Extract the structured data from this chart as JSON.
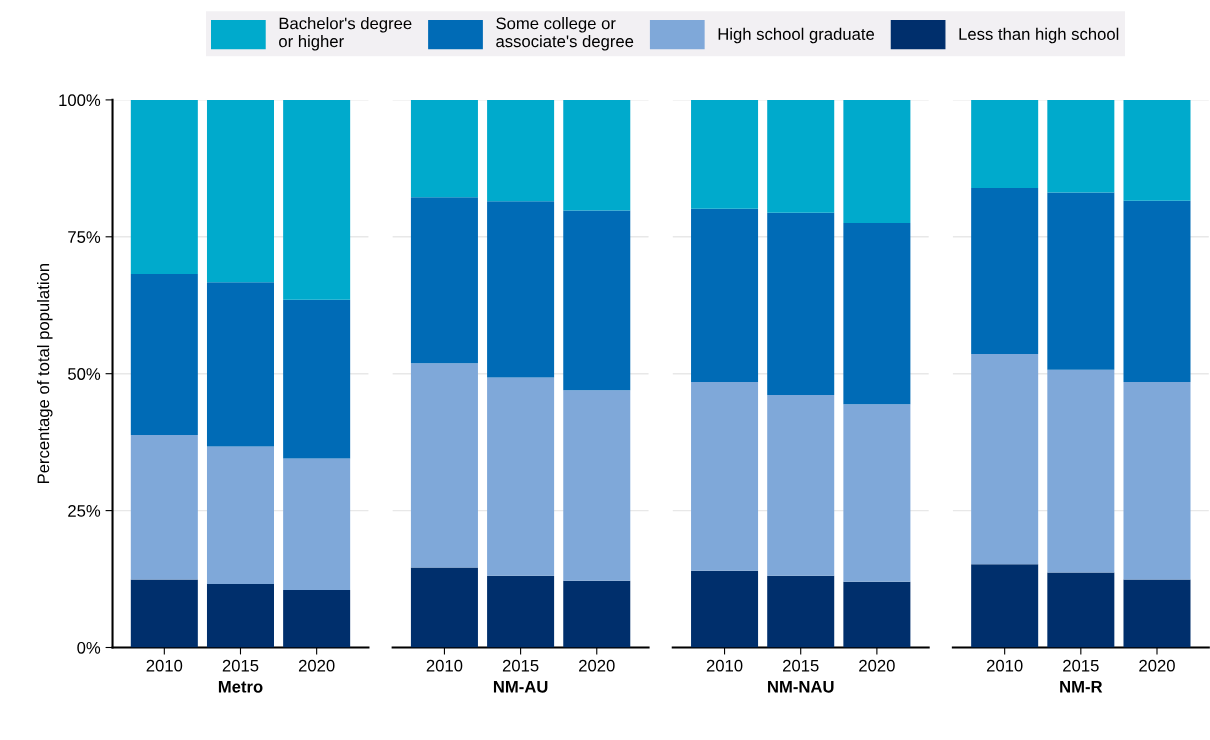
{
  "chart_data": [
    {
      "type": "bar",
      "stacked": true,
      "categories": [
        "2010",
        "2015",
        "2020"
      ],
      "xlabel": "Metro",
      "ylabel": "Percentage of total population",
      "ylim": [
        0,
        100
      ],
      "yticks": [
        {
          "value": 0,
          "label": "0%"
        },
        {
          "value": 25,
          "label": "25%"
        },
        {
          "value": 50,
          "label": "50%"
        },
        {
          "value": 75,
          "label": "75%"
        },
        {
          "value": 100,
          "label": "100%"
        }
      ],
      "grid": "y",
      "legend": "top",
      "series": [
        {
          "name": "Less than high school",
          "color": "#002f6c",
          "values": [
            12.4,
            11.6,
            10.5
          ]
        },
        {
          "name": "High school graduate",
          "color": "#7fa8d9",
          "values": [
            26.4,
            25.1,
            24.0
          ]
        },
        {
          "name": "Some college or\nassociate's degree",
          "color": "#006bb6",
          "values": [
            29.4,
            30.0,
            29.0
          ]
        },
        {
          "name": "Bachelor's degree\nor higher",
          "color": "#00aacc",
          "values": [
            31.8,
            33.3,
            36.5
          ]
        }
      ]
    },
    {
      "type": "bar",
      "stacked": true,
      "categories": [
        "2010",
        "2015",
        "2020"
      ],
      "xlabel": "NM-AU",
      "ylim": [
        0,
        100
      ],
      "tick_labels": "x",
      "grid": "y",
      "series": [
        {
          "color": "#002f6c",
          "values": [
            14.6,
            13.1,
            12.2
          ]
        },
        {
          "color": "#7fa8d9",
          "values": [
            37.3,
            36.2,
            34.8
          ]
        },
        {
          "color": "#006bb6",
          "values": [
            30.3,
            32.2,
            32.8
          ]
        },
        {
          "color": "#00aacc",
          "values": [
            17.8,
            18.5,
            20.2
          ]
        }
      ]
    },
    {
      "type": "bar",
      "stacked": true,
      "categories": [
        "2010",
        "2015",
        "2020"
      ],
      "xlabel": "NM-NAU",
      "ylim": [
        0,
        100
      ],
      "tick_labels": "x",
      "grid": "y",
      "series": [
        {
          "color": "#002f6c",
          "values": [
            14.0,
            13.1,
            12.0
          ]
        },
        {
          "color": "#7fa8d9",
          "values": [
            34.5,
            33.0,
            32.4
          ]
        },
        {
          "color": "#006bb6",
          "values": [
            31.6,
            33.3,
            33.1
          ]
        },
        {
          "color": "#00aacc",
          "values": [
            19.9,
            20.6,
            22.5
          ]
        }
      ]
    },
    {
      "type": "bar",
      "stacked": true,
      "categories": [
        "2010",
        "2015",
        "2020"
      ],
      "xlabel": "NM-R",
      "ylim": [
        0,
        100
      ],
      "tick_labels": "x",
      "grid": "y",
      "series": [
        {
          "color": "#002f6c",
          "values": [
            15.2,
            13.7,
            12.4
          ]
        },
        {
          "color": "#7fa8d9",
          "values": [
            38.4,
            37.0,
            36.1
          ]
        },
        {
          "color": "#006bb6",
          "values": [
            30.3,
            32.4,
            33.1
          ]
        },
        {
          "color": "#00aacc",
          "values": [
            16.1,
            16.9,
            18.4
          ]
        }
      ]
    }
  ]
}
